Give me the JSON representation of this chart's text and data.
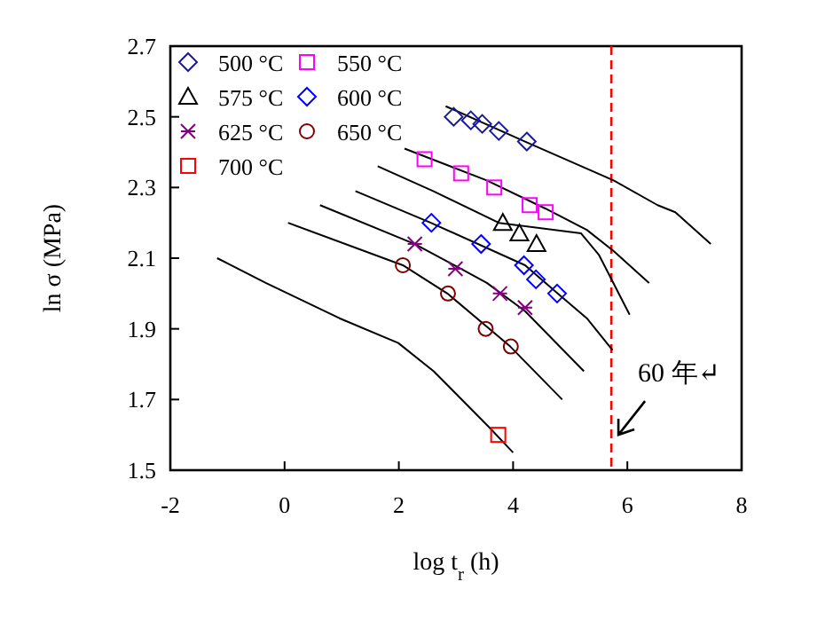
{
  "chart_data": {
    "type": "scatter",
    "xlabel": "log t$_{r}$ (h)",
    "ylabel": "ln σ (MPa)",
    "xlim": [
      -2,
      8
    ],
    "ylim": [
      1.5,
      2.7
    ],
    "xticks": [
      -2,
      0,
      2,
      4,
      6,
      8
    ],
    "yticks": [
      1.5,
      1.7,
      1.9,
      2.1,
      2.3,
      2.5,
      2.7
    ],
    "legend": "top left",
    "series": [
      {
        "type": "line",
        "color": "#000000",
        "marker": "none",
        "x": [
          2.82,
          4.21,
          5.76,
          6.53,
          6.84,
          7.46
        ],
        "values": [
          2.53,
          2.43,
          2.32,
          2.25,
          2.23,
          2.14
        ]
      },
      {
        "type": "line",
        "color": "#000000",
        "marker": "none",
        "x": [
          2.1,
          3.54,
          4.57,
          5.29,
          5.76,
          6.38
        ],
        "values": [
          2.41,
          2.32,
          2.24,
          2.18,
          2.12,
          2.03
        ]
      },
      {
        "type": "line",
        "color": "#000000",
        "marker": "none",
        "x": [
          1.63,
          2.6,
          3.75,
          5.19,
          5.5,
          6.04
        ],
        "values": [
          2.36,
          2.29,
          2.2,
          2.17,
          2.11,
          1.94
        ]
      },
      {
        "type": "line",
        "color": "#000000",
        "marker": "none",
        "x": [
          1.24,
          2.56,
          4.21,
          4.78,
          5.29,
          5.74
        ],
        "values": [
          2.29,
          2.2,
          2.08,
          2.0,
          1.93,
          1.84
        ]
      },
      {
        "type": "line",
        "color": "#000000",
        "marker": "none",
        "x": [
          0.62,
          2.28,
          2.97,
          3.54,
          4.21,
          5.24
        ],
        "values": [
          2.25,
          2.14,
          2.08,
          2.03,
          1.95,
          1.78
        ]
      },
      {
        "type": "line",
        "color": "#000000",
        "marker": "none",
        "x": [
          0.06,
          2.07,
          2.85,
          3.95,
          4.86
        ],
        "values": [
          2.2,
          2.08,
          2.0,
          1.85,
          1.7
        ]
      },
      {
        "type": "line",
        "color": "#000000",
        "marker": "none",
        "x": [
          -1.18,
          -0.33,
          0.96,
          1.99,
          2.61,
          3.59,
          4.0
        ],
        "values": [
          2.1,
          2.03,
          1.93,
          1.86,
          1.78,
          1.62,
          1.55
        ]
      },
      {
        "name": "500 °C",
        "color": "#1a1aa0",
        "marker": "diamond",
        "x": [
          2.96,
          3.26,
          3.46,
          3.75,
          4.24
        ],
        "values": [
          2.5,
          2.49,
          2.48,
          2.46,
          2.43
        ]
      },
      {
        "name": "550 °C",
        "color": "#ff00ff",
        "marker": "square",
        "x": [
          2.45,
          3.09,
          3.67,
          4.29,
          4.57
        ],
        "values": [
          2.38,
          2.34,
          2.3,
          2.25,
          2.23
        ]
      },
      {
        "name": "575 °C",
        "color": "#000000",
        "marker": "triangle",
        "x": [
          3.82,
          4.11,
          4.41
        ],
        "values": [
          2.2,
          2.17,
          2.14
        ]
      },
      {
        "name": "600 °C",
        "color": "#0000ff",
        "marker": "diamond",
        "x": [
          2.57,
          3.44,
          4.19,
          4.4,
          4.77
        ],
        "values": [
          2.2,
          2.14,
          2.08,
          2.04,
          2.0
        ]
      },
      {
        "name": "625 °C",
        "color": "#800080",
        "marker": "cross",
        "x": [
          2.28,
          2.99,
          3.77,
          4.21
        ],
        "values": [
          2.14,
          2.07,
          2.0,
          1.96
        ]
      },
      {
        "name": "650 °C",
        "color": "#800000",
        "marker": "circle",
        "x": [
          2.07,
          2.86,
          3.52,
          3.96
        ],
        "values": [
          2.08,
          2.0,
          1.9,
          1.85
        ]
      },
      {
        "name": "700 °C",
        "color": "#ff0000",
        "marker": "square",
        "x": [
          3.74
        ],
        "values": [
          1.6
        ]
      }
    ],
    "ref_lines": [
      {
        "axis": "x",
        "value": 5.72,
        "color": "#ff0000",
        "line_style": "dashed"
      }
    ],
    "annotations": [
      {
        "text": "60 年↵",
        "x": 5.75,
        "y": 1.55
      }
    ]
  }
}
